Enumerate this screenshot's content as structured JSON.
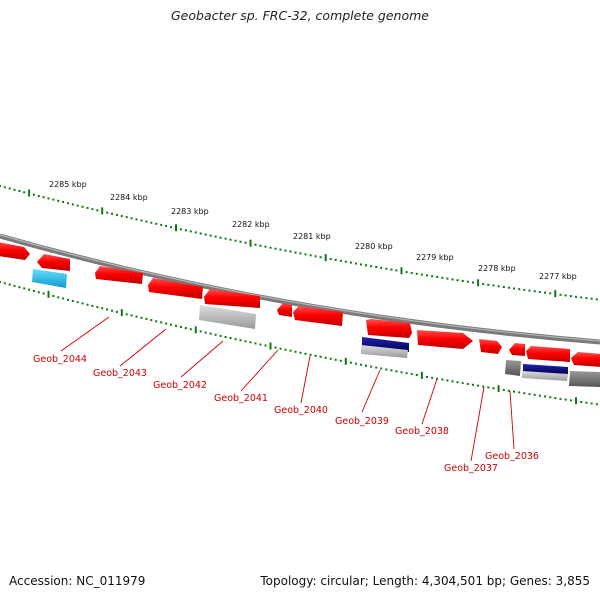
{
  "title": "Geobacter sp. FRC-32, complete genome",
  "footer": {
    "accession": "Accession: NC_011979",
    "info": "Topology: circular; Length: 4,304,501 bp; Genes: 3,855"
  },
  "colors": {
    "gene": "#ff0000",
    "tick": "#117711",
    "label": "#cc0000",
    "backbone": "#7a7a7a",
    "rna_light": "#33bbee",
    "grey_light": "#bbbbbb",
    "grey_dark": "#777777",
    "navy": "#000077"
  },
  "ruler": [
    "2285 kbp",
    "2284 kbp",
    "2283 kbp",
    "2282 kbp",
    "2281 kbp",
    "2280 kbp",
    "2279 kbp",
    "2278 kbp",
    "2277 kbp"
  ],
  "genes": [
    "Geob_2044",
    "Geob_2043",
    "Geob_2042",
    "Geob_2041",
    "Geob_2040",
    "Geob_2039",
    "Geob_2038",
    "Geob_2037",
    "Geob_2036"
  ]
}
